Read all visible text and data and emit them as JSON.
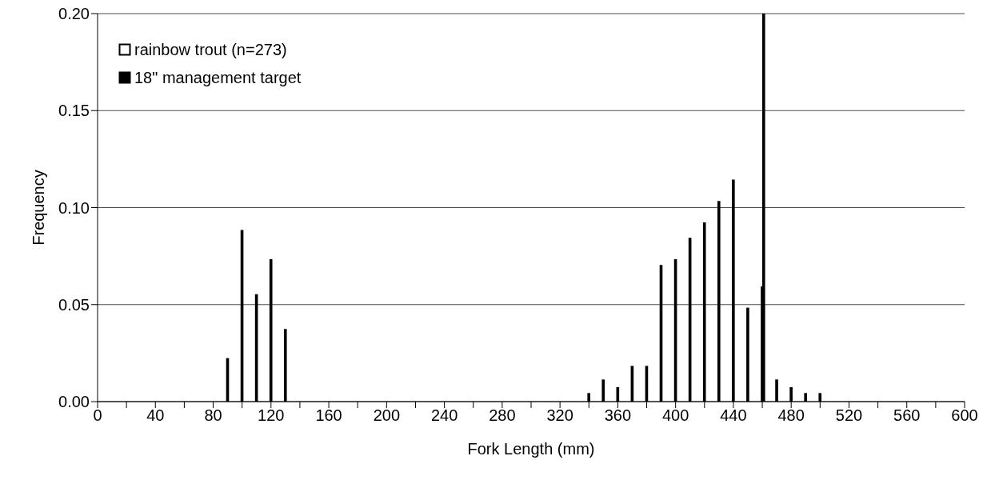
{
  "chart_data": {
    "type": "bar",
    "xlabel": "Fork Length (mm)",
    "ylabel": "Frequency",
    "x": [
      90,
      100,
      110,
      120,
      130,
      340,
      350,
      360,
      370,
      380,
      390,
      400,
      410,
      420,
      430,
      440,
      450,
      460,
      470,
      480,
      490,
      500
    ],
    "series": [
      {
        "name": "rainbow trout (n=273)",
        "color": "#ffffff",
        "values": [
          0.022,
          0.088,
          0.055,
          0.073,
          0.037,
          0.004,
          0.011,
          0.007,
          0.018,
          0.018,
          0.07,
          0.073,
          0.084,
          0.092,
          0.103,
          0.114,
          0.048,
          0.059,
          0.011,
          0.007,
          0.004,
          0.004
        ]
      },
      {
        "name": "18\" management target",
        "color": "#000000",
        "x": [
          461
        ],
        "values": [
          0.2
        ]
      }
    ],
    "xlim": [
      0,
      600
    ],
    "xticks": [
      0,
      {
        "value": 20,
        "label": null
      },
      40,
      {
        "value": 60,
        "label": null
      },
      80,
      {
        "value": 100,
        "label": null
      },
      120,
      {
        "value": 140,
        "label": null
      },
      160,
      {
        "value": 180,
        "label": null
      },
      200,
      {
        "value": 220,
        "label": null
      },
      240,
      {
        "value": 260,
        "label": null
      },
      280,
      {
        "value": 300,
        "label": null
      },
      320,
      {
        "value": 340,
        "label": null
      },
      360,
      {
        "value": 380,
        "label": null
      },
      400,
      {
        "value": 420,
        "label": null
      },
      440,
      {
        "value": 460,
        "label": null
      },
      480,
      {
        "value": 500,
        "label": null
      },
      520,
      {
        "value": 540,
        "label": null
      },
      560,
      {
        "value": 580,
        "label": null
      },
      600
    ],
    "ylim": [
      0,
      0.2
    ],
    "yticks": [
      {
        "value": 0,
        "label": "0.00"
      },
      {
        "value": 0.05,
        "label": "0.05"
      },
      {
        "value": 0.1,
        "label": "0.10"
      },
      {
        "value": 0.15,
        "label": "0.15"
      },
      {
        "value": 0.2,
        "label": "0.20"
      }
    ],
    "grid": "y",
    "legend": "top left"
  }
}
